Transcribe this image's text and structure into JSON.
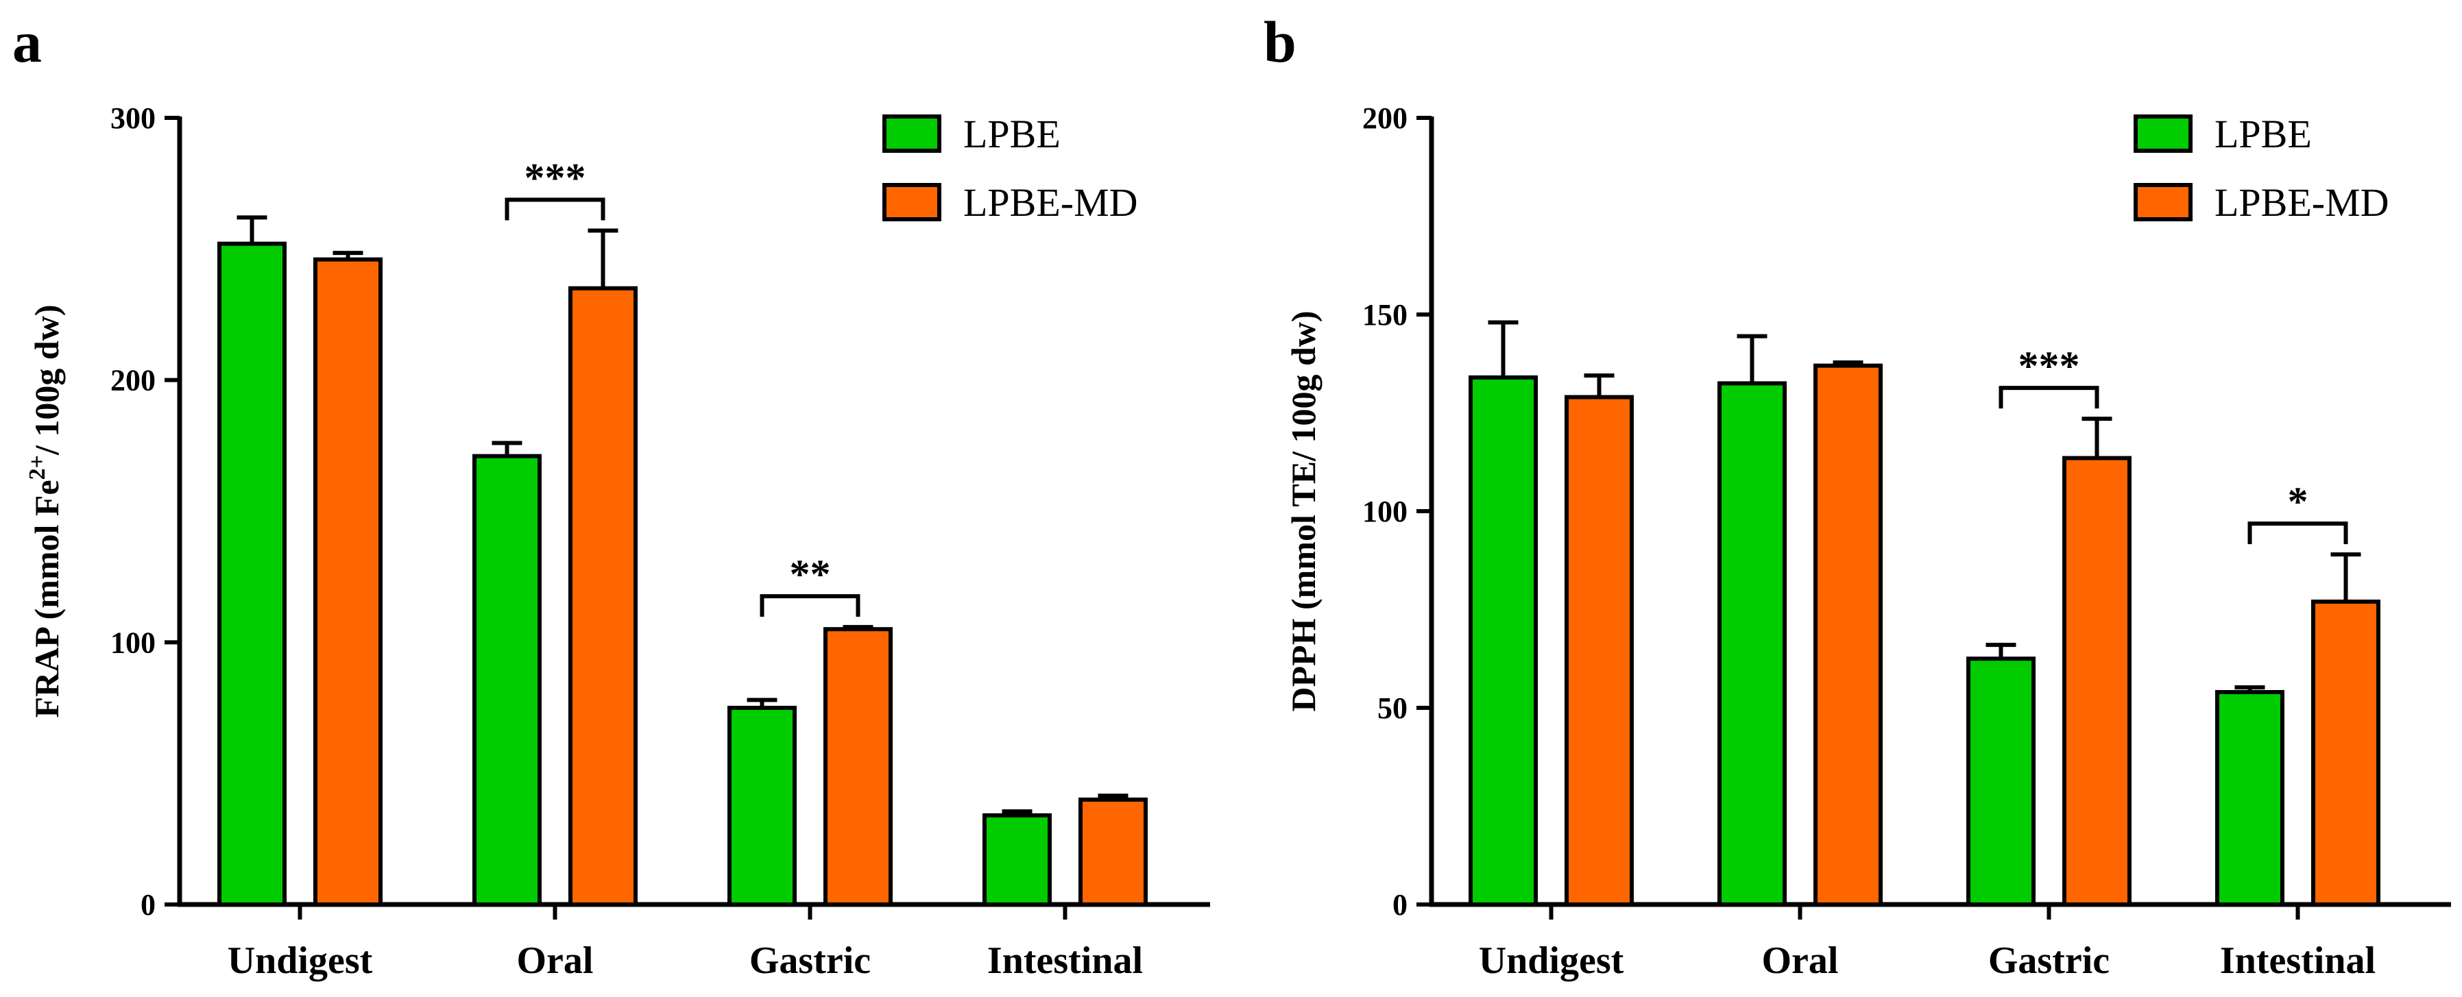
{
  "chart_data": [
    {
      "panel": "a",
      "type": "bar",
      "categories": [
        "Undigest",
        "Oral",
        "Gastric",
        "Intestinal"
      ],
      "series": [
        {
          "name": "LPBE",
          "color": "#00cc00",
          "values": [
            252,
            171,
            75,
            34
          ],
          "errors": [
            10,
            5,
            3,
            1.5
          ]
        },
        {
          "name": "LPBE-MD",
          "color": "#ff6600",
          "values": [
            246,
            235,
            105,
            40
          ],
          "errors": [
            2.5,
            22,
            0.8,
            1.5
          ]
        }
      ],
      "ylabel": "FRAP (mmol Fe",
      "ylabel_sup": "2+",
      "ylabel_tail": "/ 100g dw)",
      "ylim": [
        0,
        300
      ],
      "yticks": [
        "0",
        "100",
        "200",
        "300"
      ],
      "significance": [
        {
          "category": "Oral",
          "label": "***"
        },
        {
          "category": "Gastric",
          "label": "**"
        }
      ]
    },
    {
      "panel": "b",
      "type": "bar",
      "categories": [
        "Undigest",
        "Oral",
        "Gastric",
        "Intestinal"
      ],
      "series": [
        {
          "name": "LPBE",
          "color": "#00cc00",
          "values": [
            134,
            132.5,
            62.5,
            54
          ],
          "errors": [
            14,
            12,
            3.5,
            1.2
          ]
        },
        {
          "name": "LPBE-MD",
          "color": "#ff6600",
          "values": [
            129,
            137,
            113.5,
            77
          ],
          "errors": [
            5.5,
            0.8,
            10,
            12
          ]
        }
      ],
      "ylabel": "DPPH (mmol TE/ 100g dw)",
      "ylim": [
        0,
        200
      ],
      "yticks": [
        "0",
        "50",
        "100",
        "150",
        "200"
      ],
      "significance": [
        {
          "category": "Gastric",
          "label": "***"
        },
        {
          "category": "Intestinal",
          "label": "*"
        }
      ]
    }
  ]
}
